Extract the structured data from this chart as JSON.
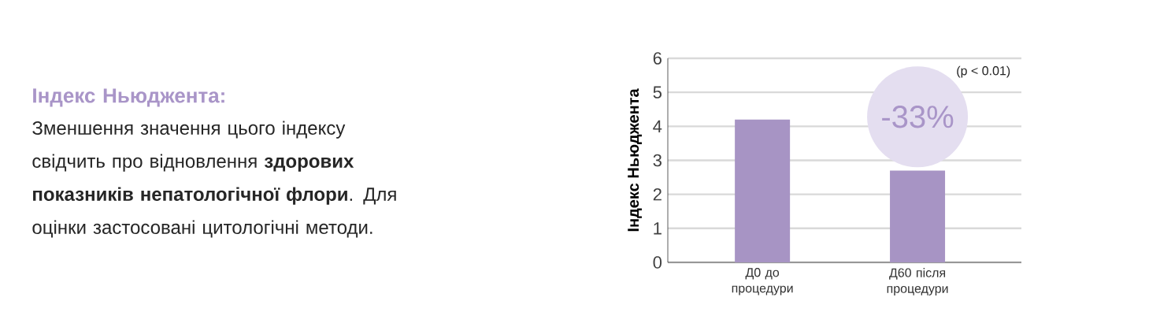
{
  "chart_data": {
    "type": "bar",
    "title": "Індекс Ньюджента:",
    "subtitle": "Зменшення значення цього індексу свідчить про відновлення **здорових показників непатологічної флори**. Для оцінки застосовані цитологічні методи.",
    "ylabel": "Індекс Ньюджента",
    "categories": [
      "Д0 до процедури",
      "Д60 після процедури"
    ],
    "values": [
      4.2,
      2.7
    ],
    "color": "#a794c4",
    "ylim": [
      0,
      6
    ],
    "yticks": [
      0,
      1,
      2,
      3,
      4,
      5,
      6
    ],
    "grid": "y",
    "annotations": [
      "(p < 0.01)",
      "-33%"
    ]
  }
}
